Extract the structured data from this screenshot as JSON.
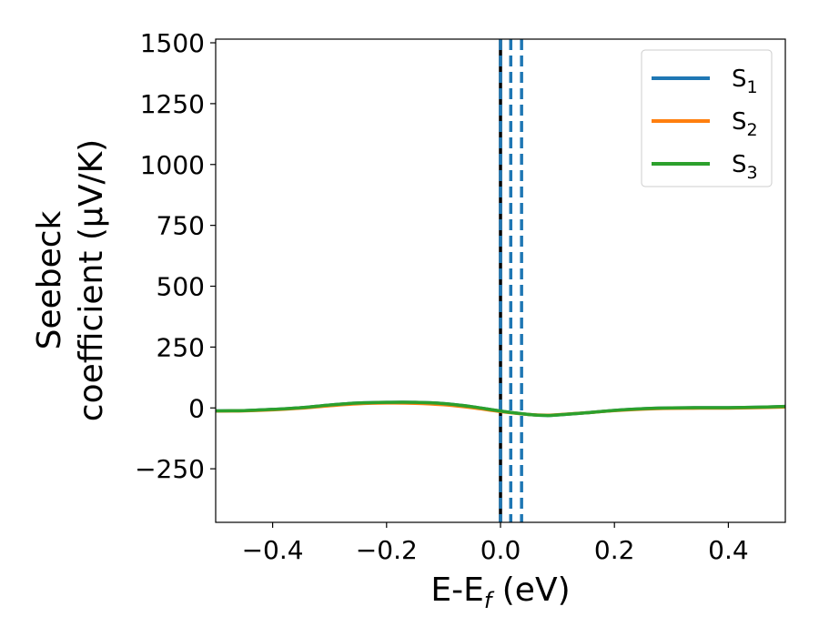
{
  "chart_data": {
    "type": "line",
    "title": "",
    "xlabel": {
      "main": "E-E",
      "sub": "f",
      "tail": " (eV)"
    },
    "ylabel": {
      "line1": "Seebeck",
      "line2": "coefficient  (μV/K)"
    },
    "xlim": [
      -0.5,
      0.5
    ],
    "ylim": [
      -470,
      1515
    ],
    "xticks": [
      -0.4,
      -0.2,
      0.0,
      0.2,
      0.4
    ],
    "xtick_labels": [
      "−0.4",
      "−0.2",
      "0.0",
      "0.2",
      "0.4"
    ],
    "yticks": [
      -250,
      0,
      250,
      500,
      750,
      1000,
      1250,
      1500
    ],
    "ytick_labels": [
      "−250",
      "0",
      "250",
      "500",
      "750",
      "1000",
      "1250",
      "1500"
    ],
    "grid": false,
    "legend_position": "top-right",
    "vlines": [
      {
        "x": 0.0,
        "color": "#000000",
        "style": "solid"
      },
      {
        "x": 0.0,
        "color": "#1f77b4",
        "style": "dashed"
      },
      {
        "x": 0.018,
        "color": "#1f77b4",
        "style": "dashed"
      },
      {
        "x": 0.037,
        "color": "#1f77b4",
        "style": "dashed"
      }
    ],
    "series": [
      {
        "name": "S",
        "sub": "1",
        "color": "#1f77b4",
        "x": [
          -0.5,
          -0.45,
          -0.4,
          -0.35,
          -0.3,
          -0.25,
          -0.2,
          -0.15,
          -0.1,
          -0.05,
          0.0,
          0.05,
          0.08,
          0.1,
          0.15,
          0.2,
          0.25,
          0.3,
          0.35,
          0.4,
          0.45,
          0.5
        ],
        "y": [
          -12,
          -11,
          -6,
          1,
          12,
          20,
          23,
          23,
          18,
          5,
          -13,
          -27,
          -31,
          -29,
          -20,
          -10,
          -3,
          0,
          1,
          1,
          3,
          6
        ]
      },
      {
        "name": "S",
        "sub": "2",
        "color": "#ff7f0e",
        "x": [
          -0.5,
          -0.45,
          -0.4,
          -0.35,
          -0.3,
          -0.25,
          -0.2,
          -0.15,
          -0.1,
          -0.05,
          0.0,
          0.05,
          0.08,
          0.1,
          0.15,
          0.2,
          0.25,
          0.3,
          0.35,
          0.4,
          0.45,
          0.5
        ],
        "y": [
          -13,
          -12,
          -8,
          -1,
          9,
          17,
          20,
          19,
          13,
          1,
          -15,
          -27,
          -30,
          -28,
          -20,
          -11,
          -5,
          -2,
          -1,
          -1,
          1,
          4
        ]
      },
      {
        "name": "S",
        "sub": "3",
        "color": "#2ca02c",
        "x": [
          -0.5,
          -0.45,
          -0.4,
          -0.35,
          -0.3,
          -0.25,
          -0.2,
          -0.15,
          -0.1,
          -0.05,
          0.0,
          0.05,
          0.08,
          0.1,
          0.15,
          0.2,
          0.25,
          0.3,
          0.35,
          0.4,
          0.45,
          0.5
        ],
        "y": [
          -12,
          -11,
          -6,
          1,
          12,
          20,
          23,
          23,
          18,
          5,
          -13,
          -27,
          -31,
          -29,
          -20,
          -10,
          -3,
          0,
          1,
          1,
          3,
          6
        ]
      }
    ]
  }
}
